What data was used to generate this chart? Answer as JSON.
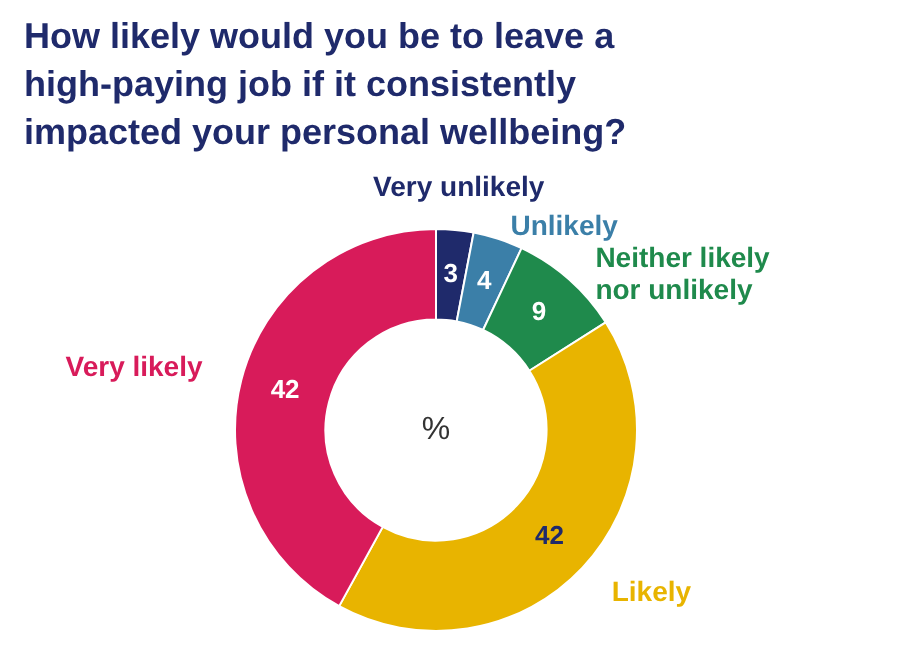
{
  "chart_data": {
    "type": "donut",
    "title": "How likely would you be to leave a high-paying job if it consistently impacted your personal wellbeing?",
    "categories": [
      "Very unlikely",
      "Unlikely",
      "Neither likely nor unlikely",
      "Likely",
      "Very likely"
    ],
    "values": [
      3,
      4,
      9,
      42,
      42
    ],
    "colors": [
      "#1f2a6b",
      "#3b7fa8",
      "#1f8a4c",
      "#e8b400",
      "#d81b5a"
    ],
    "data_labels": true,
    "legend": false,
    "annotations": [
      "%"
    ]
  }
}
